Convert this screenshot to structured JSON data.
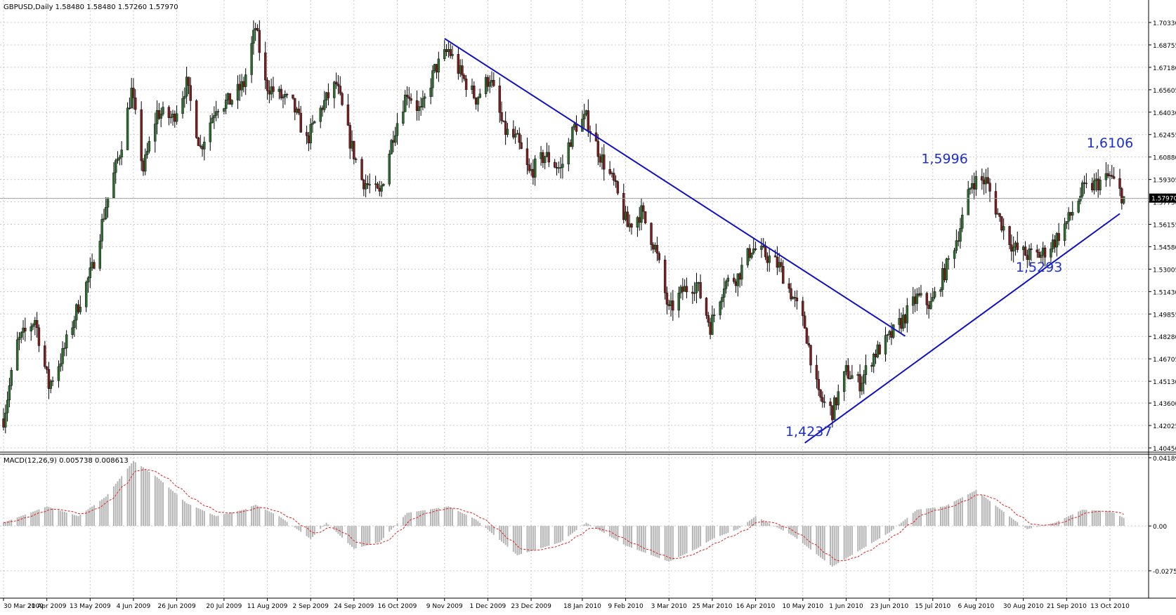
{
  "chart_data": {
    "type": "candlestick",
    "price_panel": {
      "title": "GBPUSD,Daily",
      "ohlc_readout": "1.58480 1.58480 1.57260 1.57970",
      "y_ticks": [
        "1.70330",
        "1.68755",
        "1.67180",
        "1.65605",
        "1.64030",
        "1.62455",
        "1.60880",
        "1.59305",
        "1.57730",
        "1.56155",
        "1.54580",
        "1.53005",
        "1.51430",
        "1.49855",
        "1.48280",
        "1.46705",
        "1.45130",
        "1.43600",
        "1.42025",
        "1.40450"
      ],
      "ylim": [
        1.4045,
        1.7033
      ],
      "current_price": "1.57970",
      "grid": true,
      "trendlines": [
        {
          "name": "descending",
          "start": [
            "9 Nov 2009",
            1.692
          ],
          "end": [
            "1 Jul 2010",
            1.483
          ]
        },
        {
          "name": "ascending",
          "start": [
            "11 May 2010",
            1.408
          ],
          "end": [
            "18 Oct 2010",
            1.569
          ]
        }
      ],
      "annotations": [
        {
          "text": "1,4237",
          "x": "13 May 2010",
          "y": 1.4237
        },
        {
          "text": "1,5996",
          "x": "21 Jul 2010",
          "y": 1.5996
        },
        {
          "text": "1,5293",
          "x": "7 Sep 2010",
          "y": 1.5293
        },
        {
          "text": "1,6106",
          "x": "13 Oct 2010",
          "y": 1.6106
        }
      ],
      "close_path": [
        [
          "30 Mar 2009",
          1.425
        ],
        [
          "6 Apr 2009",
          1.478
        ],
        [
          "15 Apr 2009",
          1.495
        ],
        [
          "22 Apr 2009",
          1.448
        ],
        [
          "29 Apr 2009",
          1.47
        ],
        [
          "7 May 2009",
          1.505
        ],
        [
          "14 May 2009",
          1.53
        ],
        [
          "21 May 2009",
          1.575
        ],
        [
          "28 May 2009",
          1.612
        ],
        [
          "3 Jun 2009",
          1.655
        ],
        [
          "9 Jun 2009",
          1.6
        ],
        [
          "16 Jun 2009",
          1.64
        ],
        [
          "24 Jun 2009",
          1.636
        ],
        [
          "1 Jul 2009",
          1.66
        ],
        [
          "8 Jul 2009",
          1.615
        ],
        [
          "16 Jul 2009",
          1.645
        ],
        [
          "23 Jul 2009",
          1.648
        ],
        [
          "30 Jul 2009",
          1.66
        ],
        [
          "5 Aug 2009",
          1.7
        ],
        [
          "10 Aug 2009",
          1.66
        ],
        [
          "17 Aug 2009",
          1.652
        ],
        [
          "24 Aug 2009",
          1.645
        ],
        [
          "31 Aug 2009",
          1.62
        ],
        [
          "8 Sep 2009",
          1.645
        ],
        [
          "15 Sep 2009",
          1.66
        ],
        [
          "22 Sep 2009",
          1.62
        ],
        [
          "28 Sep 2009",
          1.593
        ],
        [
          "7 Oct 2009",
          1.582
        ],
        [
          "14 Oct 2009",
          1.625
        ],
        [
          "21 Oct 2009",
          1.655
        ],
        [
          "28 Oct 2009",
          1.64
        ],
        [
          "4 Nov 2009",
          1.67
        ],
        [
          "11 Nov 2009",
          1.684
        ],
        [
          "18 Nov 2009",
          1.665
        ],
        [
          "25 Nov 2009",
          1.65
        ],
        [
          "2 Dec 2009",
          1.665
        ],
        [
          "9 Dec 2009",
          1.628
        ],
        [
          "16 Dec 2009",
          1.62
        ],
        [
          "22 Dec 2009",
          1.597
        ],
        [
          "30 Dec 2009",
          1.61
        ],
        [
          "7 Jan 2010",
          1.6
        ],
        [
          "14 Jan 2010",
          1.63
        ],
        [
          "20 Jan 2010",
          1.636
        ],
        [
          "27 Jan 2010",
          1.61
        ],
        [
          "3 Feb 2010",
          1.59
        ],
        [
          "10 Feb 2010",
          1.56
        ],
        [
          "17 Feb 2010",
          1.57
        ],
        [
          "24 Feb 2010",
          1.545
        ],
        [
          "3 Mar 2010",
          1.5
        ],
        [
          "10 Mar 2010",
          1.515
        ],
        [
          "17 Mar 2010",
          1.52
        ],
        [
          "24 Mar 2010",
          1.49
        ],
        [
          "31 Mar 2010",
          1.52
        ],
        [
          "7 Apr 2010",
          1.525
        ],
        [
          "14 Apr 2010",
          1.545
        ],
        [
          "21 Apr 2010",
          1.54
        ],
        [
          "28 Apr 2010",
          1.532
        ],
        [
          "5 May 2010",
          1.51
        ],
        [
          "11 May 2010",
          1.49
        ],
        [
          "18 May 2010",
          1.44
        ],
        [
          "25 May 2010",
          1.43
        ],
        [
          "1 Jun 2010",
          1.458
        ],
        [
          "8 Jun 2010",
          1.45
        ],
        [
          "15 Jun 2010",
          1.47
        ],
        [
          "22 Jun 2010",
          1.48
        ],
        [
          "30 Jun 2010",
          1.495
        ],
        [
          "7 Jul 2010",
          1.51
        ],
        [
          "14 Jul 2010",
          1.505
        ],
        [
          "21 Jul 2010",
          1.528
        ],
        [
          "28 Jul 2010",
          1.555
        ],
        [
          "4 Aug 2010",
          1.592
        ],
        [
          "11 Aug 2010",
          1.592
        ],
        [
          "18 Aug 2010",
          1.565
        ],
        [
          "25 Aug 2010",
          1.545
        ],
        [
          "1 Sep 2010",
          1.54
        ],
        [
          "8 Sep 2010",
          1.54
        ],
        [
          "15 Sep 2010",
          1.55
        ],
        [
          "22 Sep 2010",
          1.565
        ],
        [
          "29 Sep 2010",
          1.585
        ],
        [
          "6 Oct 2010",
          1.59
        ],
        [
          "13 Oct 2010",
          1.595
        ],
        [
          "20 Oct 2010",
          1.58
        ]
      ]
    },
    "macd_panel": {
      "title": "MACD(12,26,9) 0.005738 0.008613",
      "y_ticks": [
        "0.041892",
        "0.00",
        "-0.02753"
      ],
      "ylim": [
        -0.02753,
        0.041892
      ],
      "series": [
        {
          "type": "histogram",
          "color": "#b4b4b4"
        },
        {
          "type": "signal",
          "color": "#e02020"
        }
      ],
      "macd_path": [
        [
          "30 Mar 2009",
          0.002
        ],
        [
          "21 Apr 2009",
          0.012
        ],
        [
          "7 May 2009",
          0.006
        ],
        [
          "21 May 2009",
          0.018
        ],
        [
          "4 Jun 2009",
          0.04
        ],
        [
          "16 Jun 2009",
          0.03
        ],
        [
          "1 Jul 2009",
          0.014
        ],
        [
          "16 Jul 2009",
          0.006
        ],
        [
          "30 Jul 2009",
          0.01
        ],
        [
          "5 Aug 2009",
          0.013
        ],
        [
          "17 Aug 2009",
          0.006
        ],
        [
          "2 Sep 2009",
          -0.008
        ],
        [
          "10 Sep 2009",
          0.002
        ],
        [
          "24 Sep 2009",
          -0.014
        ],
        [
          "7 Oct 2009",
          -0.01
        ],
        [
          "21 Oct 2009",
          0.008
        ],
        [
          "11 Nov 2009",
          0.012
        ],
        [
          "25 Nov 2009",
          0.004
        ],
        [
          "16 Dec 2009",
          -0.018
        ],
        [
          "7 Jan 2010",
          -0.01
        ],
        [
          "20 Jan 2010",
          0.002
        ],
        [
          "9 Feb 2010",
          -0.012
        ],
        [
          "3 Mar 2010",
          -0.022
        ],
        [
          "17 Mar 2010",
          -0.014
        ],
        [
          "25 Mar 2010",
          -0.008
        ],
        [
          "7 Apr 2010",
          -0.002
        ],
        [
          "16 Apr 2010",
          0.006
        ],
        [
          "5 May 2010",
          -0.006
        ],
        [
          "25 May 2010",
          -0.025
        ],
        [
          "1 Jun 2010",
          -0.02
        ],
        [
          "23 Jun 2010",
          -0.004
        ],
        [
          "7 Jul 2010",
          0.01
        ],
        [
          "21 Jul 2010",
          0.012
        ],
        [
          "6 Aug 2010",
          0.022
        ],
        [
          "25 Aug 2010",
          0.004
        ],
        [
          "1 Sep 2010",
          -0.002
        ],
        [
          "15 Sep 2010",
          0.002
        ],
        [
          "29 Sep 2010",
          0.01
        ],
        [
          "13 Oct 2010",
          0.009
        ],
        [
          "20 Oct 2010",
          0.005
        ]
      ]
    },
    "x_ticks": [
      "30 Mar 2009",
      "21 Apr 2009",
      "13 May 2009",
      "4 Jun 2009",
      "26 Jun 2009",
      "20 Jul 2009",
      "11 Aug 2009",
      "2 Sep 2009",
      "24 Sep 2009",
      "16 Oct 2009",
      "9 Nov 2009",
      "1 Dec 2009",
      "23 Dec 2009",
      "18 Jan 2010",
      "9 Feb 2010",
      "3 Mar 2010",
      "25 Mar 2010",
      "16 Apr 2010",
      "10 May 2010",
      "1 Jun 2010",
      "23 Jun 2010",
      "15 Jul 2010",
      "6 Aug 2010",
      "30 Aug 2010",
      "21 Sep 2010",
      "13 Oct 2010"
    ],
    "colors": {
      "bull": "#2e6b2e",
      "bear": "#7a1f1f",
      "trendline": "#1010c8",
      "annotation": "#1e2fd0",
      "grid": "#c8c8c8"
    }
  }
}
